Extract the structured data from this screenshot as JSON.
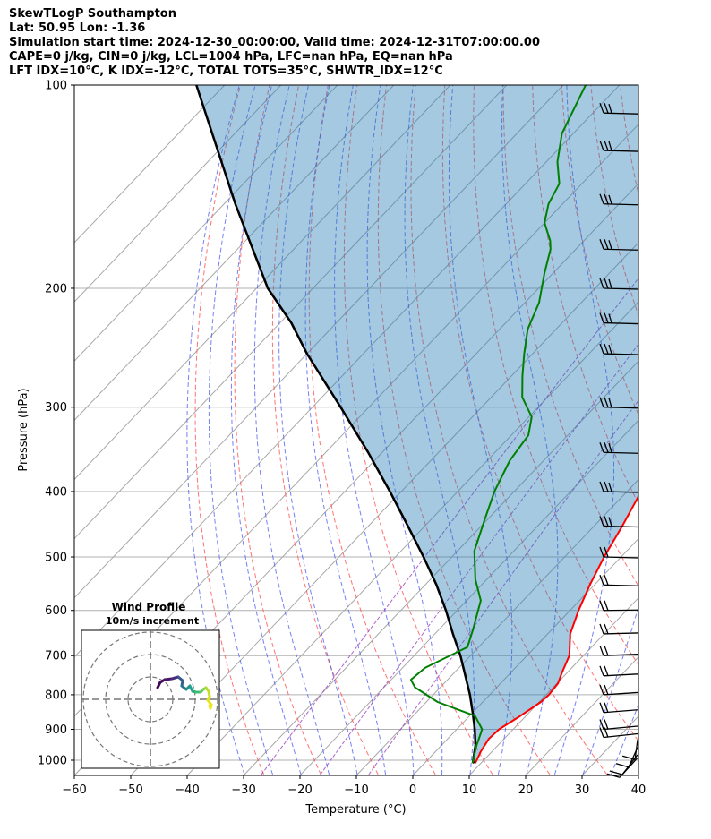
{
  "header": {
    "line1": "SkewTLogP Southampton",
    "line2": "Lat: 50.95   Lon: -1.36",
    "line3": "Simulation start time: 2024-12-30_00:00:00, Valid time: 2024-12-31T07:00:00.00",
    "line4": "CAPE=0 j/kg, CIN=0 j/kg, LCL=1004 hPa, LFC=nan hPa, EQ=nan hPa",
    "line5": "LFT IDX=10°C, K IDX=-12°C, TOTAL TOTS=35°C, SHWTR_IDX=12°C"
  },
  "chart_data": {
    "type": "line",
    "xlabel": "Temperature (°C)",
    "ylabel": "Pressure (hPa)",
    "xlim": [
      -60,
      40
    ],
    "ylim": [
      1050,
      100
    ],
    "yscale": "log",
    "skew": true,
    "grid": true,
    "x_ticks": [
      "−60",
      "−50",
      "−40",
      "−30",
      "−20",
      "−10",
      "0",
      "10",
      "20",
      "30",
      "40"
    ],
    "y_ticks": [
      "100",
      "200",
      "300",
      "400",
      "500",
      "600",
      "700",
      "800",
      "900",
      "1000"
    ],
    "series": [
      {
        "role": "temperature",
        "color": "#ff0000",
        "points": [
          [
            9.0,
            1010
          ],
          [
            8.0,
            970
          ],
          [
            7.3,
            930
          ],
          [
            7.5,
            900
          ],
          [
            9.0,
            860
          ],
          [
            10.3,
            820
          ],
          [
            10.5,
            800
          ],
          [
            10.2,
            770
          ],
          [
            9.0,
            740
          ],
          [
            7.5,
            700
          ],
          [
            4.0,
            650
          ],
          [
            1.5,
            600
          ],
          [
            -0.8,
            550
          ],
          [
            -3.0,
            500
          ],
          [
            -5.0,
            450
          ],
          [
            -7.5,
            400
          ],
          [
            -11.0,
            350
          ],
          [
            -15.5,
            300
          ],
          [
            -22.0,
            250
          ],
          [
            -27.0,
            210
          ],
          [
            -30.5,
            190
          ],
          [
            -34.0,
            180
          ],
          [
            -36.5,
            170
          ],
          [
            -40.0,
            160
          ],
          [
            -44.0,
            150
          ],
          [
            -49.0,
            140
          ],
          [
            -54.0,
            125
          ],
          [
            -59.0,
            110
          ],
          [
            -61.5,
            100
          ]
        ]
      },
      {
        "role": "dewpoint",
        "color": "#008000",
        "points": [
          [
            8.5,
            1010
          ],
          [
            6.2,
            950
          ],
          [
            4.5,
            900
          ],
          [
            1.0,
            860
          ],
          [
            -8.0,
            820
          ],
          [
            -14.5,
            780
          ],
          [
            -16.5,
            760
          ],
          [
            -16.0,
            730
          ],
          [
            -12.0,
            680
          ],
          [
            -14.0,
            640
          ],
          [
            -17.5,
            580
          ],
          [
            -22.0,
            540
          ],
          [
            -27.0,
            490
          ],
          [
            -30.5,
            440
          ],
          [
            -33.5,
            400
          ],
          [
            -36.0,
            360
          ],
          [
            -37.0,
            330
          ],
          [
            -39.5,
            310
          ],
          [
            -44.5,
            290
          ],
          [
            -48.0,
            270
          ],
          [
            -51.5,
            250
          ],
          [
            -55.0,
            230
          ],
          [
            -57.5,
            210
          ],
          [
            -61.5,
            190
          ],
          [
            -64.5,
            175
          ],
          [
            -66.0,
            170
          ],
          [
            -70.0,
            160
          ],
          [
            -72.5,
            150
          ],
          [
            -74.0,
            140
          ],
          [
            -78.0,
            130
          ],
          [
            -82.0,
            118
          ],
          [
            -86.0,
            100
          ]
        ]
      },
      {
        "role": "parcel",
        "color": "#000000",
        "points": [
          [
            8.8,
            1010
          ],
          [
            8.3,
            1004
          ],
          [
            6.0,
            950
          ],
          [
            3.2,
            900
          ],
          [
            0.0,
            850
          ],
          [
            -3.5,
            800
          ],
          [
            -7.5,
            750
          ],
          [
            -11.8,
            700
          ],
          [
            -16.8,
            650
          ],
          [
            -22.0,
            600
          ],
          [
            -28.0,
            550
          ],
          [
            -35.0,
            500
          ],
          [
            -43.0,
            450
          ],
          [
            -52.0,
            400
          ],
          [
            -62.5,
            350
          ],
          [
            -75.0,
            300
          ],
          [
            -90.0,
            250
          ],
          [
            -98.0,
            225
          ],
          [
            -108.0,
            200
          ],
          [
            -128.0,
            150
          ],
          [
            -155.0,
            100
          ]
        ]
      }
    ],
    "wind_barbs_levels_hpa": [
      1010,
      1000,
      975,
      950,
      925,
      900,
      850,
      800,
      750,
      700,
      650,
      600,
      550,
      500,
      450,
      400,
      350,
      300,
      250,
      225,
      200,
      175,
      150,
      125,
      110
    ],
    "inset": {
      "title": "Wind Profile",
      "subtitle": "10m/s increment",
      "ring_spacing_ms": 10
    }
  }
}
